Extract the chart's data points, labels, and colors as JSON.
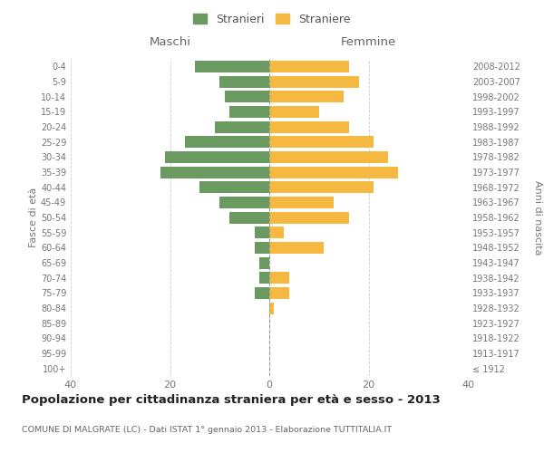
{
  "age_groups": [
    "100+",
    "95-99",
    "90-94",
    "85-89",
    "80-84",
    "75-79",
    "70-74",
    "65-69",
    "60-64",
    "55-59",
    "50-54",
    "45-49",
    "40-44",
    "35-39",
    "30-34",
    "25-29",
    "20-24",
    "15-19",
    "10-14",
    "5-9",
    "0-4"
  ],
  "birth_years": [
    "≤ 1912",
    "1913-1917",
    "1918-1922",
    "1923-1927",
    "1928-1932",
    "1933-1937",
    "1938-1942",
    "1943-1947",
    "1948-1952",
    "1953-1957",
    "1958-1962",
    "1963-1967",
    "1968-1972",
    "1973-1977",
    "1978-1982",
    "1983-1987",
    "1988-1992",
    "1993-1997",
    "1998-2002",
    "2003-2007",
    "2008-2012"
  ],
  "maschi": [
    0,
    0,
    0,
    0,
    0,
    3,
    2,
    2,
    3,
    3,
    8,
    10,
    14,
    22,
    21,
    17,
    11,
    8,
    9,
    10,
    15
  ],
  "femmine": [
    0,
    0,
    0,
    0,
    1,
    4,
    4,
    0,
    11,
    3,
    16,
    13,
    21,
    26,
    24,
    21,
    16,
    10,
    15,
    18,
    16
  ],
  "maschi_color": "#6a9a5f",
  "femmine_color": "#f5b942",
  "background_color": "#ffffff",
  "grid_color": "#cccccc",
  "title": "Popolazione per cittadinanza straniera per età e sesso - 2013",
  "subtitle": "COMUNE DI MALGRATE (LC) - Dati ISTAT 1° gennaio 2013 - Elaborazione TUTTITALIA.IT",
  "xlabel_maschi": "Maschi",
  "xlabel_femmine": "Femmine",
  "ylabel_left": "Fasce di età",
  "ylabel_right": "Anni di nascita",
  "legend_maschi": "Stranieri",
  "legend_femmine": "Straniere",
  "xlim": 40,
  "figsize": [
    6.0,
    5.0
  ],
  "dpi": 100
}
